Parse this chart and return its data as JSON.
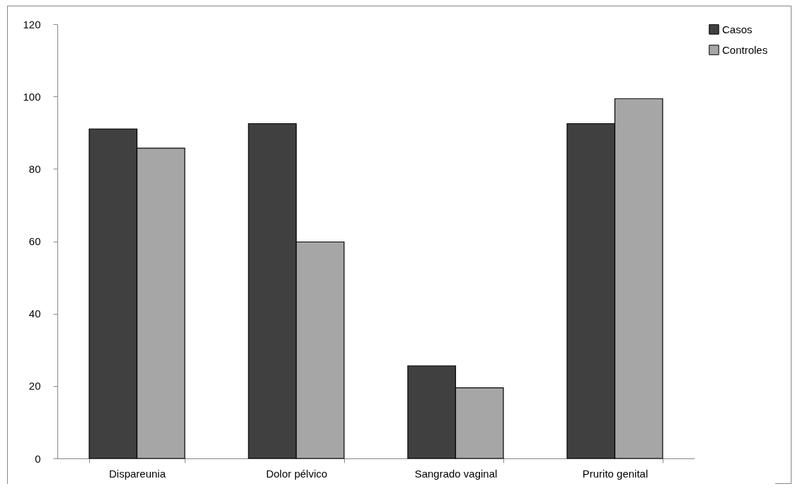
{
  "chart_data": {
    "type": "bar",
    "categories": [
      "Dispareunia",
      "Dolor pélvico",
      "Sangrado vaginal",
      "Prurito genital"
    ],
    "series": [
      {
        "name": "Casos",
        "color": "#404040",
        "values": [
          91,
          92.5,
          25.6,
          92.5
        ]
      },
      {
        "name": "Controles",
        "color": "#a6a6a6",
        "values": [
          85.7,
          59.8,
          19.5,
          99.4
        ]
      }
    ],
    "ylim": [
      0,
      120
    ],
    "yticks": [
      0,
      20,
      40,
      60,
      80,
      100,
      120
    ],
    "grid": false,
    "legend": "right"
  }
}
